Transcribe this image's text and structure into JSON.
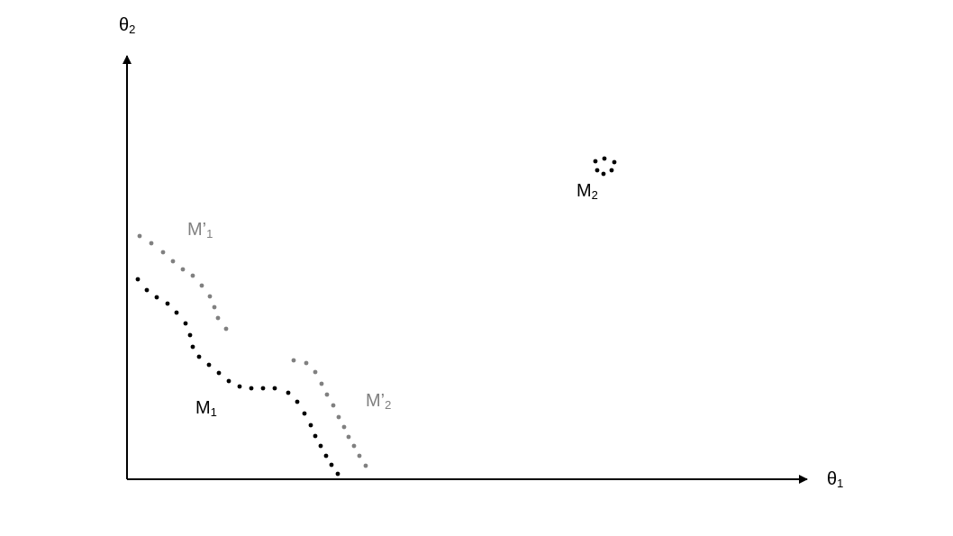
{
  "axes": {
    "x_label": {
      "base": "θ",
      "sub": "1"
    },
    "y_label": {
      "base": "θ",
      "sub": "2"
    }
  },
  "curves": [
    {
      "id": "M1",
      "label": {
        "base": "M",
        "prime": "",
        "sub": "1"
      },
      "color": "#000000"
    },
    {
      "id": "M1-prime",
      "label": {
        "base": "M",
        "prime": "’",
        "sub": "1"
      },
      "color": "#808080"
    },
    {
      "id": "M2",
      "label": {
        "base": "M",
        "prime": "",
        "sub": "2"
      },
      "color": "#000000"
    },
    {
      "id": "M2-prime",
      "label": {
        "base": "M",
        "prime": "’",
        "sub": "2"
      },
      "color": "#808080"
    }
  ]
}
